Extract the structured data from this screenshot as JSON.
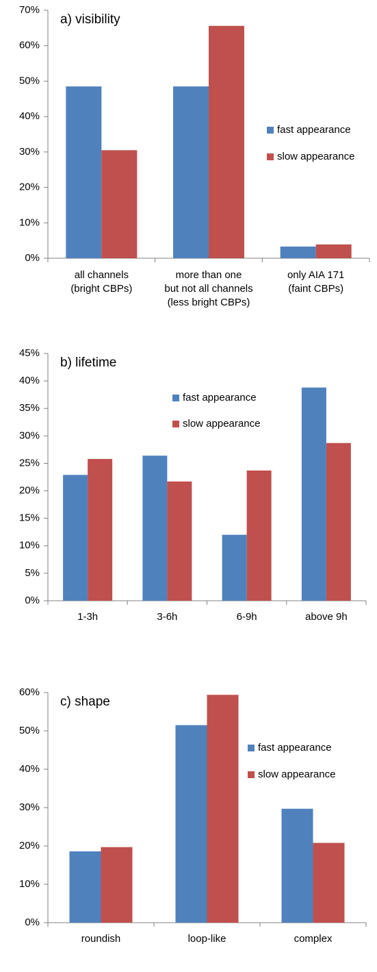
{
  "chart_data": [
    {
      "type": "bar",
      "title": "a) visibility",
      "categories": [
        "all channels\n(bright CBPs)",
        "more than one\nbut not all channels\n(less bright CBPs)",
        "only AIA 171\n(faint CBPs)"
      ],
      "series": [
        {
          "name": "fast appearance",
          "color": "#4f81bd",
          "values": [
            48.5,
            48.5,
            3.3
          ]
        },
        {
          "name": "slow appearance",
          "color": "#c0504d",
          "values": [
            30.5,
            65.6,
            3.9
          ]
        }
      ],
      "ylim": [
        0,
        70
      ],
      "yticks": [
        {
          "value": 0,
          "label": "0%"
        },
        {
          "value": 10,
          "label": "10%"
        },
        {
          "value": 20,
          "label": "20%"
        },
        {
          "value": 30,
          "label": "30%"
        },
        {
          "value": 40,
          "label": "40%"
        },
        {
          "value": 50,
          "label": "50%"
        },
        {
          "value": 60,
          "label": "60%"
        },
        {
          "value": 70,
          "label": "70%"
        }
      ]
    },
    {
      "type": "bar",
      "title": "b) lifetime",
      "categories": [
        "1-3h",
        "3-6h",
        "6-9h",
        "above 9h"
      ],
      "series": [
        {
          "name": "fast appearance",
          "color": "#4f81bd",
          "values": [
            22.9,
            26.4,
            12.0,
            38.8
          ]
        },
        {
          "name": "slow appearance",
          "color": "#c0504d",
          "values": [
            25.8,
            21.7,
            23.7,
            28.7
          ]
        }
      ],
      "ylim": [
        0,
        45
      ],
      "yticks": [
        {
          "value": 0,
          "label": "0%"
        },
        {
          "value": 5,
          "label": "5%"
        },
        {
          "value": 10,
          "label": "10%"
        },
        {
          "value": 15,
          "label": "15%"
        },
        {
          "value": 20,
          "label": "20%"
        },
        {
          "value": 25,
          "label": "25%"
        },
        {
          "value": 30,
          "label": "30%"
        },
        {
          "value": 35,
          "label": "35%"
        },
        {
          "value": 40,
          "label": "40%"
        },
        {
          "value": 45,
          "label": "45%"
        }
      ]
    },
    {
      "type": "bar",
      "title": "c) shape",
      "categories": [
        "roundish",
        "loop-like",
        "complex"
      ],
      "series": [
        {
          "name": "fast appearance",
          "color": "#4f81bd",
          "values": [
            18.6,
            51.5,
            29.7
          ]
        },
        {
          "name": "slow appearance",
          "color": "#c0504d",
          "values": [
            19.7,
            59.4,
            20.8
          ]
        }
      ],
      "ylim": [
        0,
        60
      ],
      "yticks": [
        {
          "value": 0,
          "label": "0%"
        },
        {
          "value": 10,
          "label": "10%"
        },
        {
          "value": 20,
          "label": "20%"
        },
        {
          "value": 30,
          "label": "30%"
        },
        {
          "value": 40,
          "label": "40%"
        },
        {
          "value": 50,
          "label": "50%"
        },
        {
          "value": 60,
          "label": "60%"
        }
      ]
    }
  ]
}
